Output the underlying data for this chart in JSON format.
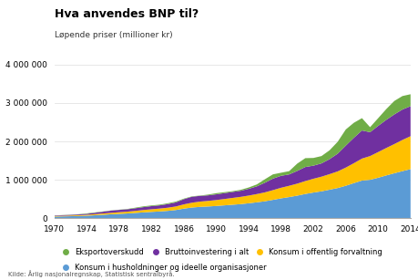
{
  "title": "Hva anvendes BNP til?",
  "subtitle": "Løpende priser (millioner kr)",
  "source": "Kilde: Årlig nasjonalregnskap, Statistisk sentralbyrå.",
  "years": [
    1970,
    1971,
    1972,
    1973,
    1974,
    1975,
    1976,
    1977,
    1978,
    1979,
    1980,
    1981,
    1982,
    1983,
    1984,
    1985,
    1986,
    1987,
    1988,
    1989,
    1990,
    1991,
    1992,
    1993,
    1994,
    1995,
    1996,
    1997,
    1998,
    1999,
    2000,
    2001,
    2002,
    2003,
    2004,
    2005,
    2006,
    2007,
    2008,
    2009,
    2010,
    2011,
    2012,
    2013,
    2014
  ],
  "konsum_hush": [
    47000,
    52000,
    57000,
    63000,
    70000,
    82000,
    95000,
    107000,
    118000,
    128000,
    142000,
    157000,
    169000,
    181000,
    196000,
    218000,
    255000,
    283000,
    300000,
    310000,
    323000,
    339000,
    355000,
    371000,
    393000,
    418000,
    445000,
    482000,
    521000,
    554000,
    591000,
    635000,
    672000,
    704000,
    746000,
    789000,
    848000,
    917000,
    983000,
    1003000,
    1056000,
    1116000,
    1173000,
    1228000,
    1280000
  ],
  "konsum_off": [
    14000,
    16000,
    18000,
    20000,
    23000,
    28000,
    33000,
    38000,
    43000,
    47000,
    54000,
    61000,
    68000,
    75000,
    82000,
    92000,
    110000,
    125000,
    137000,
    145000,
    154000,
    165000,
    177000,
    188000,
    200000,
    214000,
    231000,
    252000,
    275000,
    293000,
    312000,
    335000,
    358000,
    380000,
    404000,
    432000,
    472000,
    517000,
    571000,
    616000,
    667000,
    713000,
    758000,
    810000,
    855000
  ],
  "bruttoinv": [
    13000,
    15000,
    17000,
    20000,
    26000,
    36000,
    45000,
    57000,
    60000,
    62000,
    68000,
    75000,
    82000,
    83000,
    93000,
    105000,
    135000,
    155000,
    148000,
    144000,
    148000,
    152000,
    155000,
    158000,
    175000,
    200000,
    250000,
    300000,
    310000,
    295000,
    330000,
    365000,
    340000,
    345000,
    390000,
    460000,
    570000,
    660000,
    730000,
    620000,
    680000,
    730000,
    770000,
    790000,
    780000
  ],
  "eksport_ov": [
    3000,
    4000,
    5000,
    6000,
    12000,
    10000,
    8000,
    5000,
    5000,
    8000,
    15000,
    20000,
    18000,
    18000,
    22000,
    22000,
    14000,
    10000,
    8000,
    20000,
    30000,
    25000,
    20000,
    25000,
    35000,
    50000,
    90000,
    110000,
    80000,
    85000,
    190000,
    230000,
    200000,
    190000,
    230000,
    310000,
    420000,
    390000,
    320000,
    130000,
    200000,
    280000,
    350000,
    350000,
    310000
  ],
  "colors": {
    "konsum_hush": "#5B9BD5",
    "konsum_off": "#FFC000",
    "bruttoinv": "#7030A0",
    "eksport_ov": "#70AD47"
  },
  "legend": [
    {
      "label": "Eksportoverskudd",
      "color": "#70AD47"
    },
    {
      "label": "Bruttoinvestering i alt",
      "color": "#7030A0"
    },
    {
      "label": "Konsum i offentlig forvaltning",
      "color": "#FFC000"
    },
    {
      "label": "Konsum i husholdninger og ideelle organisasjoner",
      "color": "#5B9BD5"
    }
  ],
  "ylim": [
    0,
    4000000
  ],
  "yticks": [
    0,
    1000000,
    2000000,
    3000000,
    4000000
  ],
  "xticks": [
    1970,
    1974,
    1978,
    1982,
    1986,
    1990,
    1994,
    1998,
    2002,
    2006,
    2010,
    2014
  ],
  "background_color": "#FFFFFF",
  "grid_color": "#DDDDDD"
}
